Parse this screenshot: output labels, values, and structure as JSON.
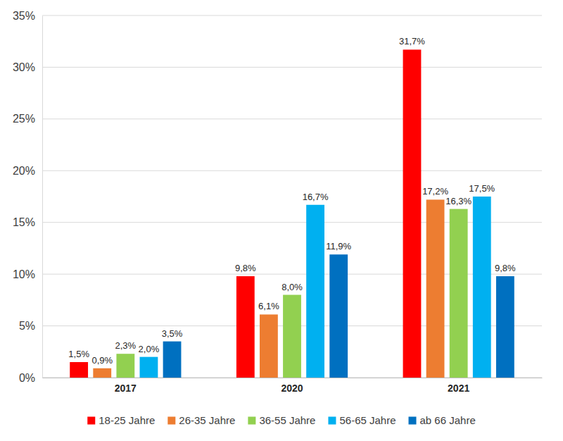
{
  "chart_data": {
    "type": "bar",
    "categories": [
      "2017",
      "2020",
      "2021"
    ],
    "series": [
      {
        "name": "18-25 Jahre",
        "color": "#ff0000",
        "values": [
          1.5,
          9.8,
          31.7
        ],
        "value_labels": [
          "1,5%",
          "9,8%",
          "31,7%"
        ]
      },
      {
        "name": "26-35 Jahre",
        "color": "#ed7d31",
        "values": [
          0.9,
          6.1,
          17.2
        ],
        "value_labels": [
          "0,9%",
          "6,1%",
          "17,2%"
        ]
      },
      {
        "name": "36-55 Jahre",
        "color": "#92d050",
        "values": [
          2.3,
          8.0,
          16.3
        ],
        "value_labels": [
          "2,3%",
          "8,0%",
          "16,3%"
        ]
      },
      {
        "name": "56-65 Jahre",
        "color": "#00b0f0",
        "values": [
          2.0,
          16.7,
          17.5
        ],
        "value_labels": [
          "2,0%",
          "16,7%",
          "17,5%"
        ]
      },
      {
        "name": "ab 66 Jahre",
        "color": "#0070c0",
        "values": [
          3.5,
          11.9,
          9.8
        ],
        "value_labels": [
          "3,5%",
          "11,9%",
          "9,8%"
        ]
      }
    ],
    "ylim": [
      0,
      35
    ],
    "yticks": [
      {
        "value": 0,
        "label": "0%"
      },
      {
        "value": 5,
        "label": "5%"
      },
      {
        "value": 10,
        "label": "10%"
      },
      {
        "value": 15,
        "label": "15%"
      },
      {
        "value": 20,
        "label": "20%"
      },
      {
        "value": 25,
        "label": "25%"
      },
      {
        "value": 30,
        "label": "30%"
      },
      {
        "value": 35,
        "label": "35%"
      }
    ],
    "grid": true,
    "legend": "bottom",
    "data_labels": true
  }
}
